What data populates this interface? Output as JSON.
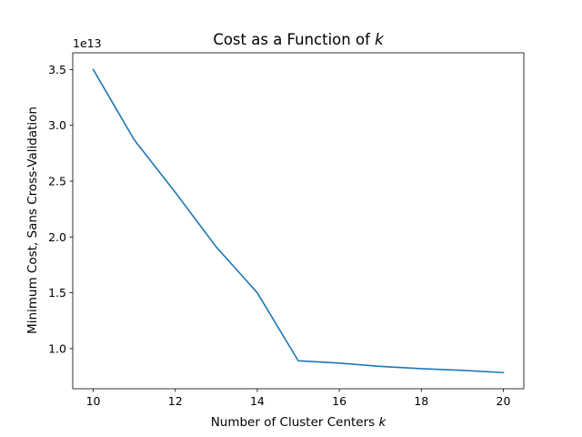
{
  "chart_data": {
    "type": "line",
    "title": "Cost as a Function of ",
    "title_var": "k",
    "xlabel": "Number of Cluster Centers ",
    "xlabel_var": "k",
    "ylabel": "Minimum Cost, Sans Cross-Validation",
    "y_offset_label": "1e13",
    "y_scale": 10000000000000.0,
    "x": [
      10,
      11,
      12,
      13,
      14,
      15,
      16,
      17,
      18,
      19,
      20
    ],
    "series": [
      {
        "name": "cost",
        "color": "#1f77b4",
        "values": [
          35000000000000.0,
          28700000000000.0,
          24000000000000.0,
          19100000000000.0,
          15000000000000.0,
          8900000000000.0,
          8700000000000.0,
          8400000000000.0,
          8200000000000.0,
          8050000000000.0,
          7850000000000.0
        ]
      }
    ],
    "xlim": [
      9.5,
      20.5
    ],
    "ylim": [
      6400000000000.0,
      36500000000000.0
    ],
    "xticks": [
      10,
      12,
      14,
      16,
      18,
      20
    ],
    "xtick_labels": [
      "10",
      "12",
      "14",
      "16",
      "18",
      "20"
    ],
    "yticks": [
      10000000000000.0,
      15000000000000.0,
      20000000000000.0,
      25000000000000.0,
      30000000000000.0,
      35000000000000.0
    ],
    "ytick_labels": [
      "1.0",
      "1.5",
      "2.0",
      "2.5",
      "3.0",
      "3.5"
    ],
    "grid": false,
    "legend": "none"
  }
}
